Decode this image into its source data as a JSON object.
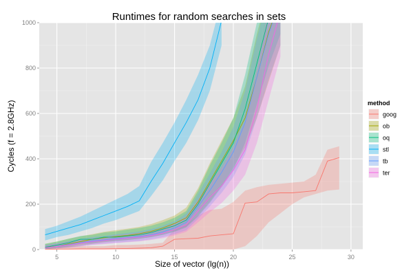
{
  "chart_data": {
    "type": "line",
    "title": "Runtimes for random searches in sets",
    "xlabel": "Size of vector (lg(n))",
    "ylabel": "Cycles (f = 2.8GHz)",
    "xlim": [
      3.5,
      31
    ],
    "ylim": [
      0,
      1000
    ],
    "x_ticks": [
      5,
      10,
      15,
      20,
      25,
      30
    ],
    "y_ticks": [
      0,
      200,
      400,
      600,
      800,
      1000
    ],
    "grid": true,
    "legend": {
      "title": "method",
      "placement": "right"
    },
    "series": [
      {
        "name": "goog",
        "color": "#F8766D",
        "x": [
          4,
          5,
          6,
          7,
          8,
          9,
          10,
          11,
          12,
          13,
          14,
          15,
          16,
          17,
          18,
          19,
          20,
          21,
          22,
          23,
          24,
          25,
          26,
          27,
          28,
          29
        ],
        "y": [
          1,
          2,
          2,
          3,
          3,
          3,
          4,
          5,
          6,
          8,
          15,
          45,
          48,
          50,
          60,
          65,
          70,
          205,
          210,
          245,
          250,
          250,
          255,
          260,
          390,
          405
        ],
        "lower": [
          0,
          0,
          0,
          0,
          0,
          0,
          0,
          0,
          0,
          0,
          0,
          0,
          0,
          0,
          0,
          0,
          0,
          15,
          60,
          120,
          160,
          200,
          230,
          245,
          260,
          265
        ],
        "upper": [
          15,
          15,
          15,
          15,
          15,
          15,
          20,
          20,
          22,
          25,
          30,
          90,
          110,
          150,
          175,
          180,
          210,
          260,
          275,
          285,
          290,
          295,
          300,
          330,
          440,
          455
        ]
      },
      {
        "name": "ob",
        "color": "#A3A500",
        "x": [
          4,
          5,
          6,
          7,
          8,
          9,
          10,
          11,
          12,
          13,
          14,
          15,
          16,
          17,
          18,
          19,
          20,
          21,
          22,
          23,
          24
        ],
        "y": [
          10,
          15,
          25,
          35,
          45,
          52,
          58,
          62,
          70,
          80,
          95,
          115,
          140,
          210,
          300,
          390,
          480,
          580,
          760,
          960,
          1100
        ],
        "lower": [
          2,
          5,
          10,
          18,
          25,
          32,
          38,
          42,
          48,
          55,
          65,
          80,
          100,
          150,
          210,
          280,
          360,
          450,
          580,
          740,
          900
        ],
        "upper": [
          25,
          35,
          48,
          58,
          68,
          78,
          85,
          92,
          100,
          112,
          130,
          150,
          185,
          270,
          380,
          480,
          580,
          720,
          950,
          1150,
          1250
        ]
      },
      {
        "name": "oq",
        "color": "#00BF7D",
        "x": [
          4,
          5,
          6,
          7,
          8,
          9,
          10,
          11,
          12,
          13,
          14,
          15,
          16,
          17,
          18,
          19,
          20,
          21,
          22,
          23,
          24
        ],
        "y": [
          10,
          20,
          30,
          45,
          45,
          55,
          55,
          60,
          65,
          75,
          90,
          105,
          130,
          200,
          290,
          380,
          470,
          620,
          820,
          1020,
          1150
        ],
        "lower": [
          2,
          8,
          15,
          25,
          28,
          35,
          38,
          42,
          48,
          55,
          65,
          78,
          98,
          145,
          205,
          275,
          350,
          470,
          640,
          810,
          950
        ],
        "upper": [
          25,
          35,
          48,
          60,
          65,
          75,
          80,
          88,
          95,
          105,
          120,
          140,
          170,
          260,
          370,
          470,
          580,
          770,
          1000,
          1200,
          1300
        ]
      },
      {
        "name": "stl",
        "color": "#00B0F6",
        "x": [
          4,
          5,
          6,
          7,
          8,
          9,
          10,
          11,
          12,
          13,
          14,
          15,
          16,
          17,
          18,
          19
        ],
        "y": [
          65,
          80,
          95,
          110,
          130,
          150,
          170,
          190,
          215,
          300,
          380,
          470,
          560,
          660,
          800,
          1010
        ],
        "lower": [
          40,
          55,
          65,
          80,
          95,
          115,
          130,
          150,
          170,
          235,
          305,
          390,
          470,
          570,
          700,
          900
        ],
        "upper": [
          90,
          105,
          125,
          145,
          170,
          195,
          220,
          245,
          280,
          385,
          470,
          560,
          660,
          770,
          900,
          1100
        ]
      },
      {
        "name": "tb",
        "color": "#619CFF",
        "x": [
          4,
          5,
          6,
          7,
          8,
          9,
          10,
          11,
          12,
          13,
          14,
          15,
          16,
          17,
          18,
          19,
          20,
          21,
          22,
          23,
          24
        ],
        "y": [
          8,
          15,
          22,
          30,
          38,
          42,
          48,
          52,
          58,
          65,
          78,
          95,
          120,
          190,
          260,
          340,
          430,
          560,
          760,
          950,
          1100
        ],
        "lower": [
          2,
          5,
          10,
          15,
          22,
          26,
          30,
          34,
          38,
          45,
          55,
          68,
          85,
          135,
          190,
          250,
          320,
          420,
          580,
          750,
          900
        ],
        "upper": [
          20,
          28,
          38,
          48,
          55,
          60,
          68,
          74,
          80,
          90,
          105,
          125,
          160,
          245,
          335,
          430,
          540,
          700,
          930,
          1130,
          1250
        ]
      },
      {
        "name": "ter",
        "color": "#F564E3",
        "x": [
          4,
          5,
          6,
          7,
          8,
          9,
          10,
          11,
          12,
          13,
          14,
          15,
          16,
          17,
          18,
          19,
          20,
          21,
          22,
          23,
          24
        ],
        "y": [
          8,
          14,
          20,
          28,
          35,
          40,
          45,
          50,
          55,
          62,
          72,
          88,
          110,
          170,
          230,
          280,
          350,
          440,
          620,
          860,
          1050
        ],
        "lower": [
          2,
          5,
          8,
          14,
          20,
          24,
          28,
          32,
          36,
          42,
          50,
          62,
          78,
          120,
          165,
          205,
          260,
          330,
          470,
          660,
          850
        ],
        "upper": [
          18,
          26,
          34,
          42,
          50,
          56,
          62,
          68,
          74,
          82,
          95,
          115,
          145,
          220,
          295,
          360,
          450,
          570,
          790,
          1060,
          1250
        ]
      }
    ]
  }
}
